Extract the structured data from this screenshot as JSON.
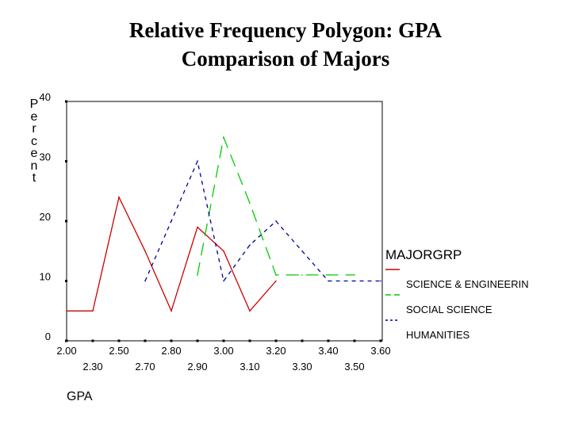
{
  "chart_data": {
    "type": "line",
    "title_lines": [
      "Relative Frequency Polygon: GPA",
      "Comparison of Majors"
    ],
    "xlabel": "GPA",
    "ylabel": "Percent",
    "x_ticks": [
      "2.00",
      "2.30",
      "2.50",
      "2.70",
      "2.80",
      "2.90",
      "3.00",
      "3.10",
      "3.20",
      "3.30",
      "3.40",
      "3.50",
      "3.60"
    ],
    "y_ticks": [
      "0",
      "10",
      "20",
      "30",
      "40"
    ],
    "ylim": [
      0,
      40
    ],
    "legend_title": "MAJORGRP",
    "legend_position": "right",
    "series": [
      {
        "name": "SCIENCE & ENGINEERIN",
        "color": "#cc0000",
        "dash": "solid",
        "points": [
          [
            "2.00",
            5
          ],
          [
            "2.30",
            5
          ],
          [
            "2.50",
            24
          ],
          [
            "2.70",
            15
          ],
          [
            "2.80",
            5
          ],
          [
            "2.90",
            19
          ],
          [
            "3.00",
            15
          ],
          [
            "3.10",
            5
          ],
          [
            "3.20",
            10
          ]
        ]
      },
      {
        "name": "SOCIAL SCIENCE",
        "color": "#00cc00",
        "dash": "long-dash",
        "points": [
          [
            "2.90",
            11
          ],
          [
            "3.00",
            34
          ],
          [
            "3.10",
            23
          ],
          [
            "3.20",
            11
          ],
          [
            "3.30",
            11
          ],
          [
            "3.40",
            11
          ],
          [
            "3.50",
            11
          ]
        ]
      },
      {
        "name": "HUMANITIES",
        "color": "#000099",
        "dash": "short-dash",
        "points": [
          [
            "2.70",
            10
          ],
          [
            "2.80",
            20
          ],
          [
            "2.90",
            30
          ],
          [
            "3.00",
            10
          ],
          [
            "3.10",
            16
          ],
          [
            "3.20",
            20
          ],
          [
            "3.30",
            15
          ],
          [
            "3.40",
            10
          ],
          [
            "3.50",
            10
          ],
          [
            "3.60",
            10
          ]
        ]
      }
    ]
  }
}
